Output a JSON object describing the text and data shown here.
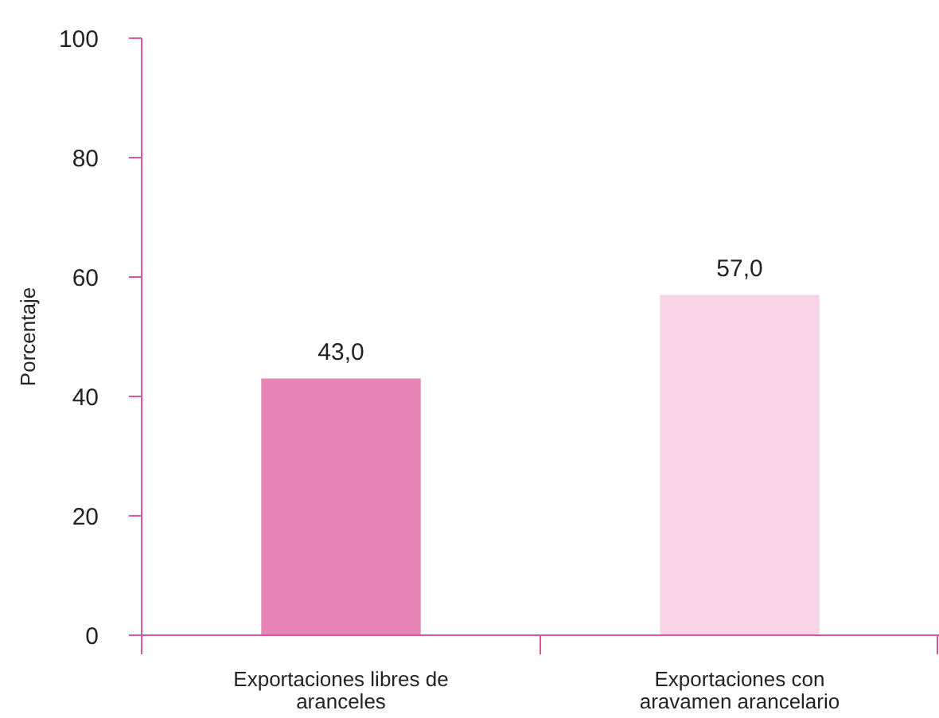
{
  "chart_data": {
    "type": "bar",
    "ylabel": "Porcentaje",
    "categories": [
      "Exportaciones libres de aranceles",
      "Exportaciones con aravamen arancelario"
    ],
    "values": [
      43.0,
      57.0
    ],
    "colors": [
      "#e685b5",
      "#f7d5e6"
    ],
    "value_labels": [
      "43,0",
      "57,0"
    ],
    "ylim": [
      0,
      100
    ],
    "yticks": [
      0,
      20,
      40,
      60,
      80,
      100
    ]
  }
}
